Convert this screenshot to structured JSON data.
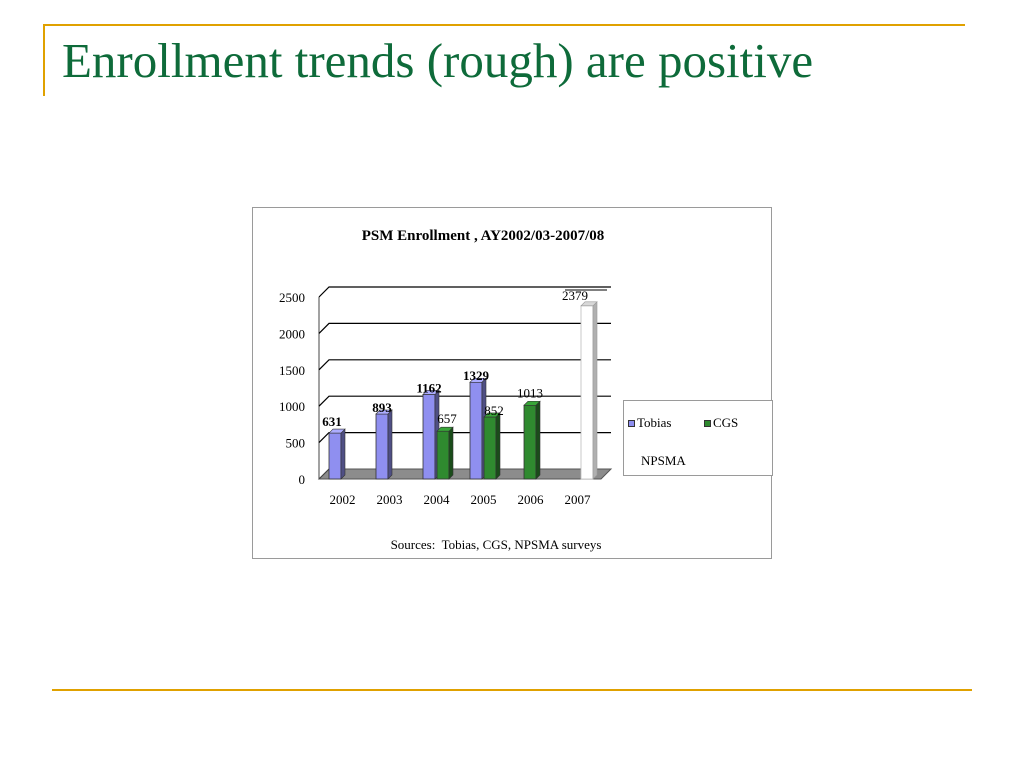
{
  "slide": {
    "title": "Enrollment trends (rough) are positive"
  },
  "colors": {
    "accent_rule": "#e0a100",
    "title_text": "#0e6b3a",
    "tobias": "#8f8ff0",
    "cgs": "#2f8a2f",
    "npsma": "#ffffff"
  },
  "chart_data": {
    "type": "bar",
    "title": "PSM Enrollment , AY2002/03-2007/08",
    "xlabel": "",
    "ylabel": "",
    "categories": [
      "2002",
      "2003",
      "2004",
      "2005",
      "2006",
      "2007"
    ],
    "y_ticks": [
      "0",
      "500",
      "1000",
      "1500",
      "2000",
      "2500"
    ],
    "ylim": [
      0,
      2500
    ],
    "grid": true,
    "legend_position": "right",
    "series": [
      {
        "name": "Tobias",
        "color": "#8f8ff0",
        "values": [
          631,
          893,
          1162,
          1329,
          null,
          null
        ],
        "labels": [
          "631",
          "893",
          "1162",
          "1329",
          "",
          ""
        ],
        "label_bold": true
      },
      {
        "name": "CGS",
        "color": "#2f8a2f",
        "values": [
          null,
          null,
          657,
          852,
          1013,
          null
        ],
        "labels": [
          "",
          "",
          "657",
          "852",
          "1013",
          ""
        ],
        "label_bold": false
      },
      {
        "name": "NPSMA",
        "color": "#ffffff",
        "values": [
          null,
          null,
          null,
          null,
          null,
          2379
        ],
        "labels": [
          "",
          "",
          "",
          "",
          "",
          "2379"
        ],
        "label_bold": false
      }
    ],
    "source": "Sources:  Tobias, CGS, NPSMA surveys"
  }
}
